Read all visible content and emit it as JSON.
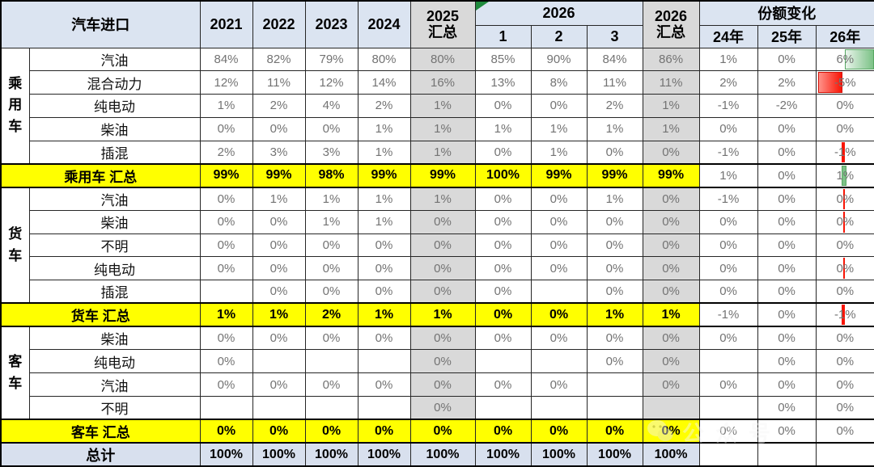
{
  "title_cell": "汽车进口",
  "header": {
    "years": [
      "2021",
      "2022",
      "2023",
      "2024"
    ],
    "sum2025": {
      "line1": "2025",
      "line2": "汇总"
    },
    "group2026": "2026",
    "months": [
      "1",
      "2",
      "3"
    ],
    "sum2026": {
      "line1": "2026",
      "line2": "汇总"
    },
    "share_change": "份额变化",
    "share_years": [
      "24年",
      "25年",
      "26年"
    ]
  },
  "column_meaning": [
    "2021",
    "2022",
    "2023",
    "2024",
    "2025汇总",
    "2026-1",
    "2026-2",
    "2026-3",
    "2026汇总",
    "份额变化24年",
    "份额变化25年",
    "份额变化26年"
  ],
  "rows": [
    {
      "kind": "data",
      "group": "乘用车",
      "group_span": 5,
      "label": "汽油",
      "values": [
        "84%",
        "82%",
        "79%",
        "80%",
        "80%",
        "85%",
        "90%",
        "84%",
        "86%",
        "1%",
        "0%",
        "6%"
      ],
      "bar26": "g-lg"
    },
    {
      "kind": "data",
      "label": "混合动力",
      "values": [
        "12%",
        "11%",
        "12%",
        "14%",
        "16%",
        "13%",
        "8%",
        "11%",
        "11%",
        "2%",
        "2%",
        "-5%"
      ],
      "bar26": "r-lg"
    },
    {
      "kind": "data",
      "label": "纯电动",
      "values": [
        "1%",
        "2%",
        "4%",
        "2%",
        "1%",
        "0%",
        "0%",
        "2%",
        "1%",
        "-1%",
        "-2%",
        "0%"
      ]
    },
    {
      "kind": "data",
      "label": "柴油",
      "values": [
        "0%",
        "0%",
        "0%",
        "1%",
        "1%",
        "1%",
        "1%",
        "1%",
        "1%",
        "0%",
        "0%",
        "0%"
      ]
    },
    {
      "kind": "data",
      "label": "插混",
      "values": [
        "2%",
        "3%",
        "3%",
        "1%",
        "1%",
        "0%",
        "1%",
        "0%",
        "0%",
        "-1%",
        "0%",
        "-1%"
      ],
      "bar26": "r-sm"
    },
    {
      "kind": "summary",
      "label": "乘用车 汇总",
      "values": [
        "99%",
        "99%",
        "98%",
        "99%",
        "99%",
        "100%",
        "99%",
        "99%",
        "99%",
        "1%",
        "0%",
        "1%"
      ],
      "bar26": "g-sm"
    },
    {
      "kind": "data",
      "group": "货车",
      "group_span": 5,
      "label": "汽油",
      "values": [
        "0%",
        "1%",
        "1%",
        "1%",
        "1%",
        "0%",
        "0%",
        "1%",
        "0%",
        "-1%",
        "0%",
        "0%"
      ],
      "bar26": "r-hair"
    },
    {
      "kind": "data",
      "label": "柴油",
      "values": [
        "0%",
        "0%",
        "1%",
        "1%",
        "0%",
        "0%",
        "0%",
        "0%",
        "0%",
        "0%",
        "0%",
        "0%"
      ],
      "bar26": "r-hair"
    },
    {
      "kind": "data",
      "label": "不明",
      "values": [
        "0%",
        "0%",
        "0%",
        "0%",
        "0%",
        "0%",
        "0%",
        "0%",
        "0%",
        "0%",
        "0%",
        "0%"
      ]
    },
    {
      "kind": "data",
      "label": "纯电动",
      "values": [
        "0%",
        "0%",
        "0%",
        "0%",
        "0%",
        "0%",
        "0%",
        "0%",
        "0%",
        "0%",
        "0%",
        "0%"
      ],
      "bar26": "r-hair"
    },
    {
      "kind": "data",
      "label": "插混",
      "values": [
        "",
        "0%",
        "0%",
        "0%",
        "0%",
        "0%",
        "",
        "0%",
        "0%",
        "0%",
        "0%",
        "0%"
      ]
    },
    {
      "kind": "summary",
      "label": "货车 汇总",
      "values": [
        "1%",
        "1%",
        "2%",
        "1%",
        "1%",
        "0%",
        "0%",
        "1%",
        "1%",
        "-1%",
        "0%",
        "-1%"
      ],
      "bar26": "r-sm"
    },
    {
      "kind": "data",
      "group": "客车",
      "group_span": 4,
      "label": "柴油",
      "values": [
        "0%",
        "0%",
        "0%",
        "0%",
        "0%",
        "0%",
        "0%",
        "0%",
        "0%",
        "0%",
        "0%",
        "0%"
      ]
    },
    {
      "kind": "data",
      "label": "纯电动",
      "values": [
        "0%",
        "",
        "",
        "",
        "0%",
        "",
        "",
        "0%",
        "0%",
        "",
        "0%",
        "0%"
      ]
    },
    {
      "kind": "data",
      "label": "汽油",
      "values": [
        "0%",
        "0%",
        "0%",
        "0%",
        "0%",
        "0%",
        "0%",
        "",
        "0%",
        "0%",
        "0%",
        "0%"
      ]
    },
    {
      "kind": "data",
      "label": "不明",
      "values": [
        "",
        "",
        "",
        "",
        "0%",
        "",
        "",
        "",
        "",
        "",
        "0%",
        "0%"
      ]
    },
    {
      "kind": "summary",
      "label": "客车 汇总",
      "values": [
        "0%",
        "0%",
        "0%",
        "0%",
        "0%",
        "0%",
        "0%",
        "0%",
        "0%",
        "0%",
        "0%",
        "0%"
      ]
    },
    {
      "kind": "total",
      "label": "总计",
      "values": [
        "100%",
        "100%",
        "100%",
        "100%",
        "100%",
        "100%",
        "100%",
        "100%",
        "100%",
        "",
        "",
        ""
      ]
    }
  ],
  "watermark": {
    "icon": "wechat-icon",
    "text": "公众号"
  },
  "colors": {
    "header_bg": "#dbe4f1",
    "summary_col_bg": "#d9d9d9",
    "summary_row_bg": "#ffff00",
    "total_row_bg": "#d8e0ee",
    "positive_bar_green": "#7cc287",
    "negative_bar_red": "#f81505",
    "corner_flag_green": "#1e8a3c",
    "value_text": "#737373"
  }
}
